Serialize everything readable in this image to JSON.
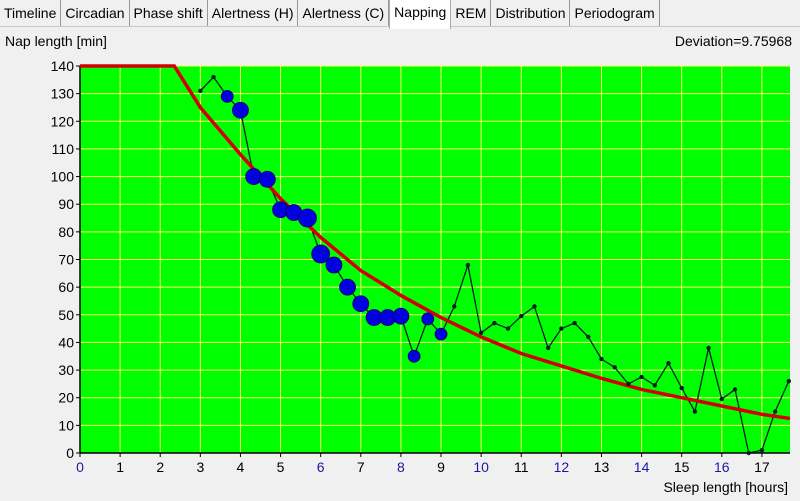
{
  "tabs": [
    "Timeline",
    "Circadian",
    "Phase shift",
    "Alertness (H)",
    "Alertness (C)",
    "Napping",
    "REM",
    "Distribution",
    "Periodogram"
  ],
  "active_tab": "Napping",
  "colors": {
    "plot_bg": "#00ff00",
    "grid": "#ffff66",
    "curve": "#d40000",
    "points": "#0000e0",
    "line": "#002020",
    "tick_blue": "#1a1aa0"
  },
  "chart_data": {
    "type": "scatter",
    "ylabel": "Nap length [min]",
    "xlabel": "Sleep length [hours]",
    "annotation": "Deviation=9.75968",
    "xlim": [
      0,
      17.7
    ],
    "ylim": [
      0,
      140
    ],
    "xticks": [
      "0",
      "1",
      "2",
      "3",
      "4",
      "5",
      "6",
      "7",
      "8",
      "9",
      "10",
      "11",
      "12",
      "13",
      "14",
      "15",
      "16",
      "17"
    ],
    "yticks": [
      "0",
      "10",
      "20",
      "30",
      "40",
      "50",
      "60",
      "70",
      "80",
      "90",
      "100",
      "110",
      "120",
      "130",
      "140"
    ],
    "grid": true,
    "points": [
      {
        "x": 3.0,
        "y": 131,
        "w": 0
      },
      {
        "x": 3.33,
        "y": 136,
        "w": 0
      },
      {
        "x": 3.67,
        "y": 129,
        "w": 2
      },
      {
        "x": 4.0,
        "y": 124,
        "w": 3
      },
      {
        "x": 4.33,
        "y": 100,
        "w": 3
      },
      {
        "x": 4.67,
        "y": 99,
        "w": 3
      },
      {
        "x": 5.0,
        "y": 88,
        "w": 3
      },
      {
        "x": 5.33,
        "y": 87,
        "w": 3
      },
      {
        "x": 5.67,
        "y": 85,
        "w": 4
      },
      {
        "x": 6.0,
        "y": 72,
        "w": 4
      },
      {
        "x": 6.33,
        "y": 68,
        "w": 3
      },
      {
        "x": 6.67,
        "y": 60,
        "w": 3
      },
      {
        "x": 7.0,
        "y": 54,
        "w": 3
      },
      {
        "x": 7.33,
        "y": 49,
        "w": 3
      },
      {
        "x": 7.67,
        "y": 49,
        "w": 3
      },
      {
        "x": 8.0,
        "y": 49.5,
        "w": 3
      },
      {
        "x": 8.33,
        "y": 35,
        "w": 2
      },
      {
        "x": 8.67,
        "y": 48.5,
        "w": 2
      },
      {
        "x": 9.0,
        "y": 43,
        "w": 2
      },
      {
        "x": 9.33,
        "y": 53,
        "w": 0
      },
      {
        "x": 9.67,
        "y": 68,
        "w": 0
      },
      {
        "x": 10.0,
        "y": 43.5,
        "w": 0
      },
      {
        "x": 10.33,
        "y": 47,
        "w": 0
      },
      {
        "x": 10.67,
        "y": 45,
        "w": 0
      },
      {
        "x": 11.0,
        "y": 49.5,
        "w": 0
      },
      {
        "x": 11.33,
        "y": 53,
        "w": 0
      },
      {
        "x": 11.67,
        "y": 38,
        "w": 0
      },
      {
        "x": 12.0,
        "y": 45,
        "w": 0
      },
      {
        "x": 12.33,
        "y": 47,
        "w": 0
      },
      {
        "x": 12.67,
        "y": 42,
        "w": 0
      },
      {
        "x": 13.0,
        "y": 34,
        "w": 0
      },
      {
        "x": 13.33,
        "y": 31,
        "w": 0
      },
      {
        "x": 13.67,
        "y": 25,
        "w": 0
      },
      {
        "x": 14.0,
        "y": 27.5,
        "w": 0
      },
      {
        "x": 14.33,
        "y": 24.5,
        "w": 0
      },
      {
        "x": 14.67,
        "y": 32.5,
        "w": 0
      },
      {
        "x": 15.0,
        "y": 23.5,
        "w": 0
      },
      {
        "x": 15.33,
        "y": 15,
        "w": 0
      },
      {
        "x": 15.67,
        "y": 38,
        "w": 0
      },
      {
        "x": 16.0,
        "y": 19.5,
        "w": 0
      },
      {
        "x": 16.33,
        "y": 23,
        "w": 0
      },
      {
        "x": 16.67,
        "y": 0,
        "w": 0
      },
      {
        "x": 17.0,
        "y": 1,
        "w": 0
      },
      {
        "x": 17.33,
        "y": 15,
        "w": 0
      },
      {
        "x": 17.67,
        "y": 26,
        "w": 0
      }
    ],
    "fit_curve": [
      [
        0,
        140
      ],
      [
        2.35,
        140
      ],
      [
        3,
        125
      ],
      [
        4,
        108
      ],
      [
        5,
        92
      ],
      [
        6,
        78
      ],
      [
        7,
        66
      ],
      [
        8,
        57
      ],
      [
        9,
        49
      ],
      [
        10,
        42
      ],
      [
        11,
        36
      ],
      [
        12,
        31.5
      ],
      [
        13,
        27
      ],
      [
        14,
        23
      ],
      [
        15,
        20
      ],
      [
        16,
        17
      ],
      [
        17,
        14
      ],
      [
        17.7,
        12.5
      ]
    ]
  }
}
